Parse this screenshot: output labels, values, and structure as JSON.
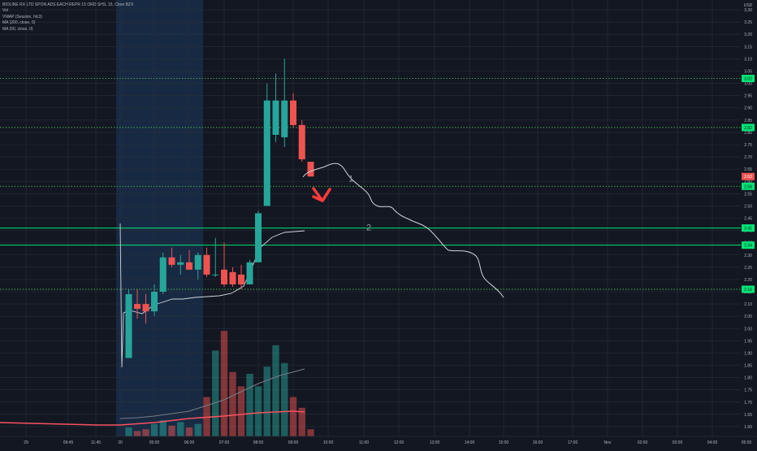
{
  "legend": {
    "title": "BIOLINE RX LTD SPON ADS EACH REPR 15 ORD SHS, 15, Cboe BZX",
    "vol": "Vol",
    "vwap": "VWAP (Session, hlc3)",
    "ma200": "MA (200, close, 0)",
    "ma50": "MA (50, close, 0)"
  },
  "colors": {
    "background": "#131722",
    "grid": "#2a2e39",
    "up": "#26a69a",
    "down": "#ef5350",
    "session_band": "#1e3a5f",
    "level_dotted": "#4caf50",
    "level_solid": "#00e676",
    "price_badge": "#00e676",
    "drawing": "#d1d4dc",
    "arrow": "#ff3b3b",
    "ma_slow": "#f7525f",
    "vwap": "#d1d4dc",
    "ma_fast": "#787b86"
  },
  "chart_data": {
    "type": "candlestick",
    "y_axis": {
      "unit": "USD",
      "ylim": [
        1.56,
        3.34
      ],
      "ticks": [
        "3.30",
        "3.25",
        "3.20",
        "3.15",
        "3.10",
        "3.05",
        "3.00",
        "2.95",
        "2.90",
        "2.85",
        "2.80",
        "2.75",
        "2.70",
        "2.65",
        "2.60",
        "2.55",
        "2.50",
        "2.45",
        "2.40",
        "2.35",
        "2.30",
        "2.25",
        "2.20",
        "2.15",
        "2.10",
        "2.05",
        "2.00",
        "1.95",
        "1.90",
        "1.85",
        "1.80",
        "1.75",
        "1.70",
        "1.65",
        "1.60"
      ]
    },
    "x_axis": {
      "ticks": [
        "29",
        "09:45",
        "11:45",
        "30",
        "05:00",
        "06:00",
        "07:00",
        "08:00",
        "09:00",
        "10:00",
        "11:00",
        "12:00",
        "13:00",
        "14:00",
        "15:00",
        "16:00",
        "17:00",
        "Nov",
        "02:00",
        "03:00",
        "04:00",
        "05:00"
      ]
    },
    "session_band": {
      "from": "30",
      "to": "06:00+"
    },
    "price_levels": [
      {
        "price": 3.02,
        "style": "dotted",
        "label": "3.02"
      },
      {
        "price": 2.82,
        "style": "dotted",
        "label": "2.82"
      },
      {
        "price": 2.58,
        "style": "dotted",
        "label": "2.58"
      },
      {
        "price": 2.41,
        "style": "solid",
        "label": "2.41"
      },
      {
        "price": 2.34,
        "style": "solid",
        "label": "2.34"
      },
      {
        "price": 2.16,
        "style": "dotted",
        "label": "2.16"
      }
    ],
    "last_price": {
      "price": 2.62,
      "label": "2.62"
    },
    "candles": [
      {
        "t": "04:15",
        "o": 1.88,
        "h": 2.16,
        "l": 1.88,
        "c": 2.14,
        "v": 0.5
      },
      {
        "t": "04:30",
        "o": 2.1,
        "h": 2.16,
        "l": 2.04,
        "c": 2.08,
        "v": 0.3
      },
      {
        "t": "04:45",
        "o": 2.1,
        "h": 2.14,
        "l": 2.02,
        "c": 2.07,
        "v": 0.4
      },
      {
        "t": "05:00",
        "o": 2.07,
        "h": 2.18,
        "l": 2.05,
        "c": 2.15,
        "v": 0.7
      },
      {
        "t": "05:15",
        "o": 2.15,
        "h": 2.31,
        "l": 2.14,
        "c": 2.29,
        "v": 0.9
      },
      {
        "t": "05:30",
        "o": 2.29,
        "h": 2.33,
        "l": 2.25,
        "c": 2.26,
        "v": 0.6
      },
      {
        "t": "05:45",
        "o": 2.26,
        "h": 2.3,
        "l": 2.22,
        "c": 2.27,
        "v": 0.8
      },
      {
        "t": "06:00",
        "o": 2.27,
        "h": 2.32,
        "l": 2.24,
        "c": 2.24,
        "v": 0.5
      },
      {
        "t": "06:15",
        "o": 2.24,
        "h": 2.31,
        "l": 2.2,
        "c": 2.3,
        "v": 0.7
      },
      {
        "t": "06:30",
        "o": 2.3,
        "h": 2.33,
        "l": 2.21,
        "c": 2.22,
        "v": 2.2
      },
      {
        "t": "06:45",
        "o": 2.22,
        "h": 2.37,
        "l": 2.21,
        "c": 2.22,
        "v": 4.8
      },
      {
        "t": "07:00",
        "o": 2.24,
        "h": 2.35,
        "l": 2.17,
        "c": 2.18,
        "v": 5.9
      },
      {
        "t": "07:15",
        "o": 2.23,
        "h": 2.25,
        "l": 2.17,
        "c": 2.18,
        "v": 3.6
      },
      {
        "t": "07:30",
        "o": 2.22,
        "h": 2.26,
        "l": 2.16,
        "c": 2.18,
        "v": 2.8
      },
      {
        "t": "07:45",
        "o": 2.18,
        "h": 2.28,
        "l": 2.18,
        "c": 2.27,
        "v": 3.5
      },
      {
        "t": "08:00",
        "o": 2.27,
        "h": 2.48,
        "l": 2.27,
        "c": 2.47,
        "v": 2.8
      },
      {
        "t": "08:15",
        "o": 2.5,
        "h": 3.0,
        "l": 2.5,
        "c": 2.93,
        "v": 3.9
      },
      {
        "t": "08:30",
        "o": 2.79,
        "h": 3.04,
        "l": 2.76,
        "c": 2.93,
        "v": 5.1
      },
      {
        "t": "08:45",
        "o": 2.78,
        "h": 3.1,
        "l": 2.74,
        "c": 2.93,
        "v": 4.1
      },
      {
        "t": "09:00",
        "o": 2.93,
        "h": 2.96,
        "l": 2.82,
        "c": 2.83,
        "v": 2.2
      },
      {
        "t": "09:15",
        "o": 2.83,
        "h": 2.85,
        "l": 2.68,
        "c": 2.69,
        "v": 1.6
      },
      {
        "t": "09:30",
        "o": 2.68,
        "h": 2.68,
        "l": 2.62,
        "c": 2.62,
        "v": 0.4
      }
    ],
    "annotations": [
      {
        "text": "1",
        "price": 2.59,
        "near": "10:30"
      },
      {
        "text": "2",
        "price": 2.39,
        "near": "11:45"
      }
    ]
  }
}
